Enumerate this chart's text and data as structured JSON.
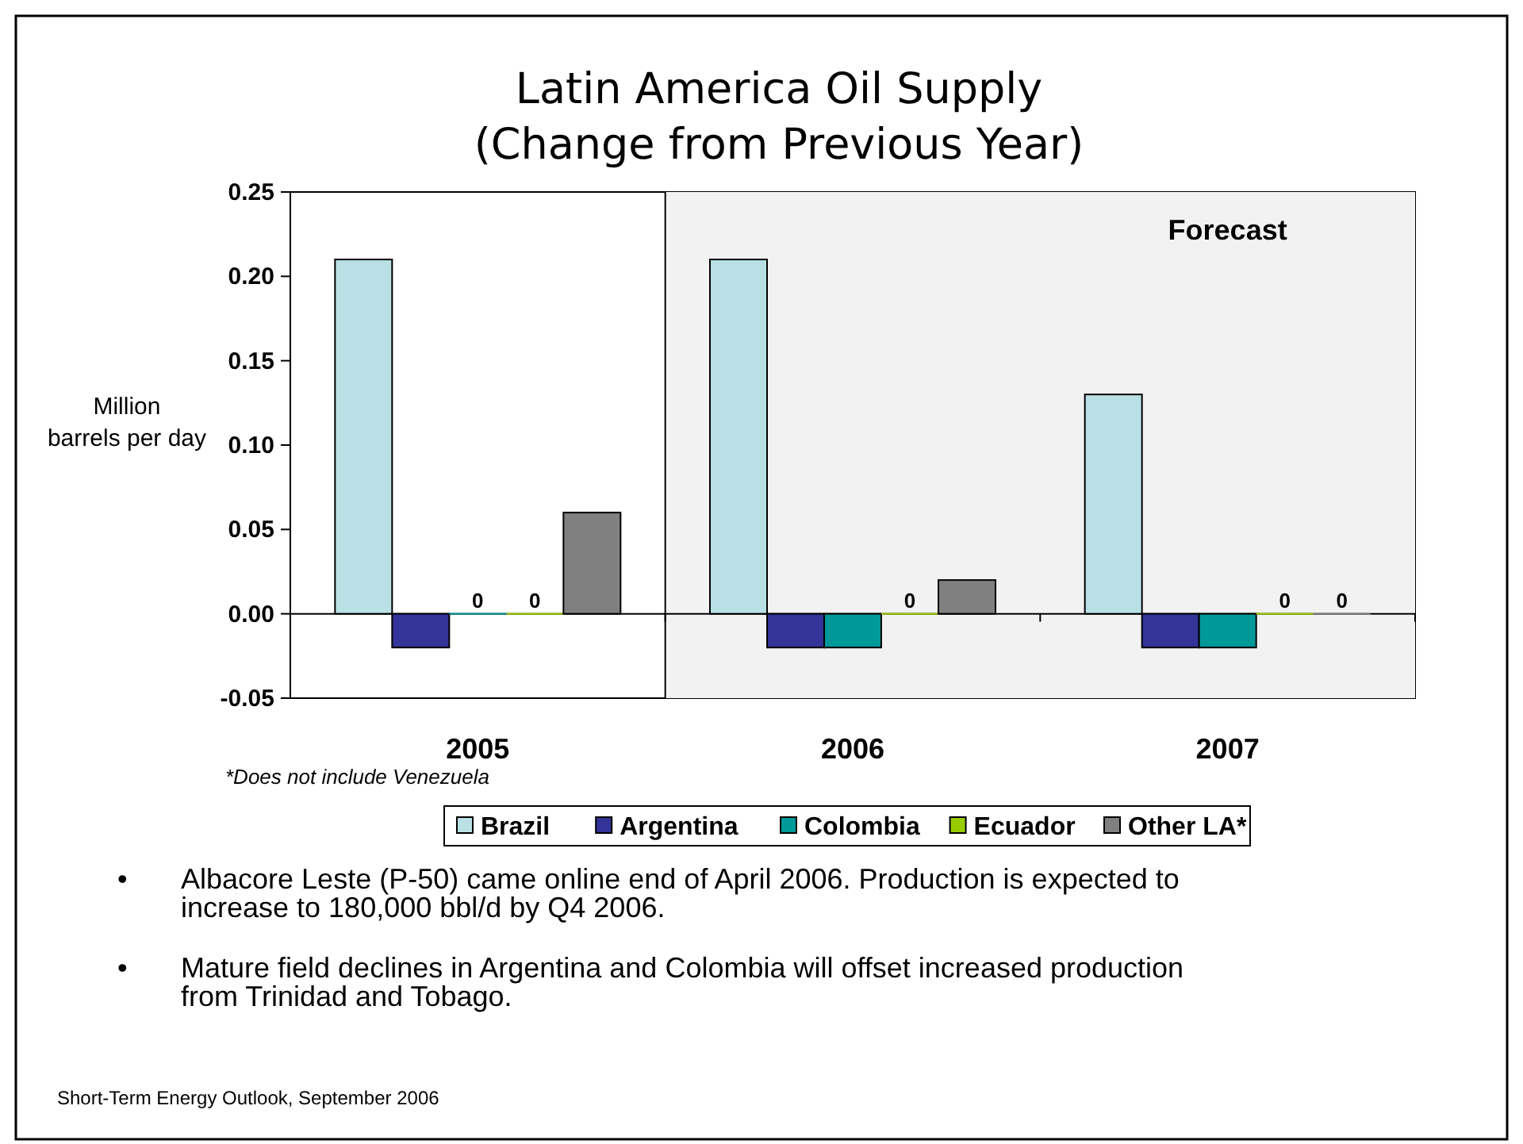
{
  "chart_data": {
    "type": "bar",
    "title": "Latin America Oil Supply",
    "subtitle": "(Change from Previous Year)",
    "ylabel": "Million barrels per day",
    "categories": [
      "2005",
      "2006",
      "2007"
    ],
    "series": [
      {
        "name": "Brazil",
        "color": "#b9e1e5",
        "values": [
          0.21,
          0.21,
          0.13
        ],
        "value_labels": [
          null,
          null,
          null
        ]
      },
      {
        "name": "Argentina",
        "color": "#333399",
        "values": [
          -0.02,
          -0.02,
          -0.02
        ],
        "value_labels": [
          null,
          null,
          null
        ]
      },
      {
        "name": "Colombia",
        "color": "#009999",
        "values": [
          0,
          -0.02,
          -0.02
        ],
        "value_labels": [
          "0",
          null,
          null
        ]
      },
      {
        "name": "Ecuador",
        "color": "#99cc00",
        "values": [
          0,
          0,
          0
        ],
        "value_labels": [
          "0",
          "0",
          "0"
        ]
      },
      {
        "name": "Other LA*",
        "color": "#808080",
        "values": [
          0.06,
          0.02,
          0
        ],
        "value_labels": [
          null,
          null,
          "0"
        ]
      }
    ],
    "ylim": [
      -0.05,
      0.25
    ],
    "yticks": [
      {
        "value": -0.05,
        "label": "-0.05"
      },
      {
        "value": 0,
        "label": "0.00"
      },
      {
        "value": 0.05,
        "label": "0.05"
      },
      {
        "value": 0.1,
        "label": "0.10"
      },
      {
        "value": 0.15,
        "label": "0.15"
      },
      {
        "value": 0.2,
        "label": "0.20"
      },
      {
        "value": 0.25,
        "label": "0.25"
      }
    ],
    "bands": [
      {
        "axis": "x",
        "from": "2006",
        "to": "2007",
        "label": "Forecast",
        "color": "#f2f2f2"
      }
    ],
    "legend": "bottom",
    "annotations": [
      "*Does not include Venezuela",
      "• Albacore Leste (P-50) came online end of April 2006. Production is expected to increase to 180,000 bbl/d by Q4 2006.",
      "• Mature field declines in Argentina and Colombia will offset increased production from Trinidad and Tobago.",
      "Short-Term Energy Outlook, September 2006"
    ]
  }
}
